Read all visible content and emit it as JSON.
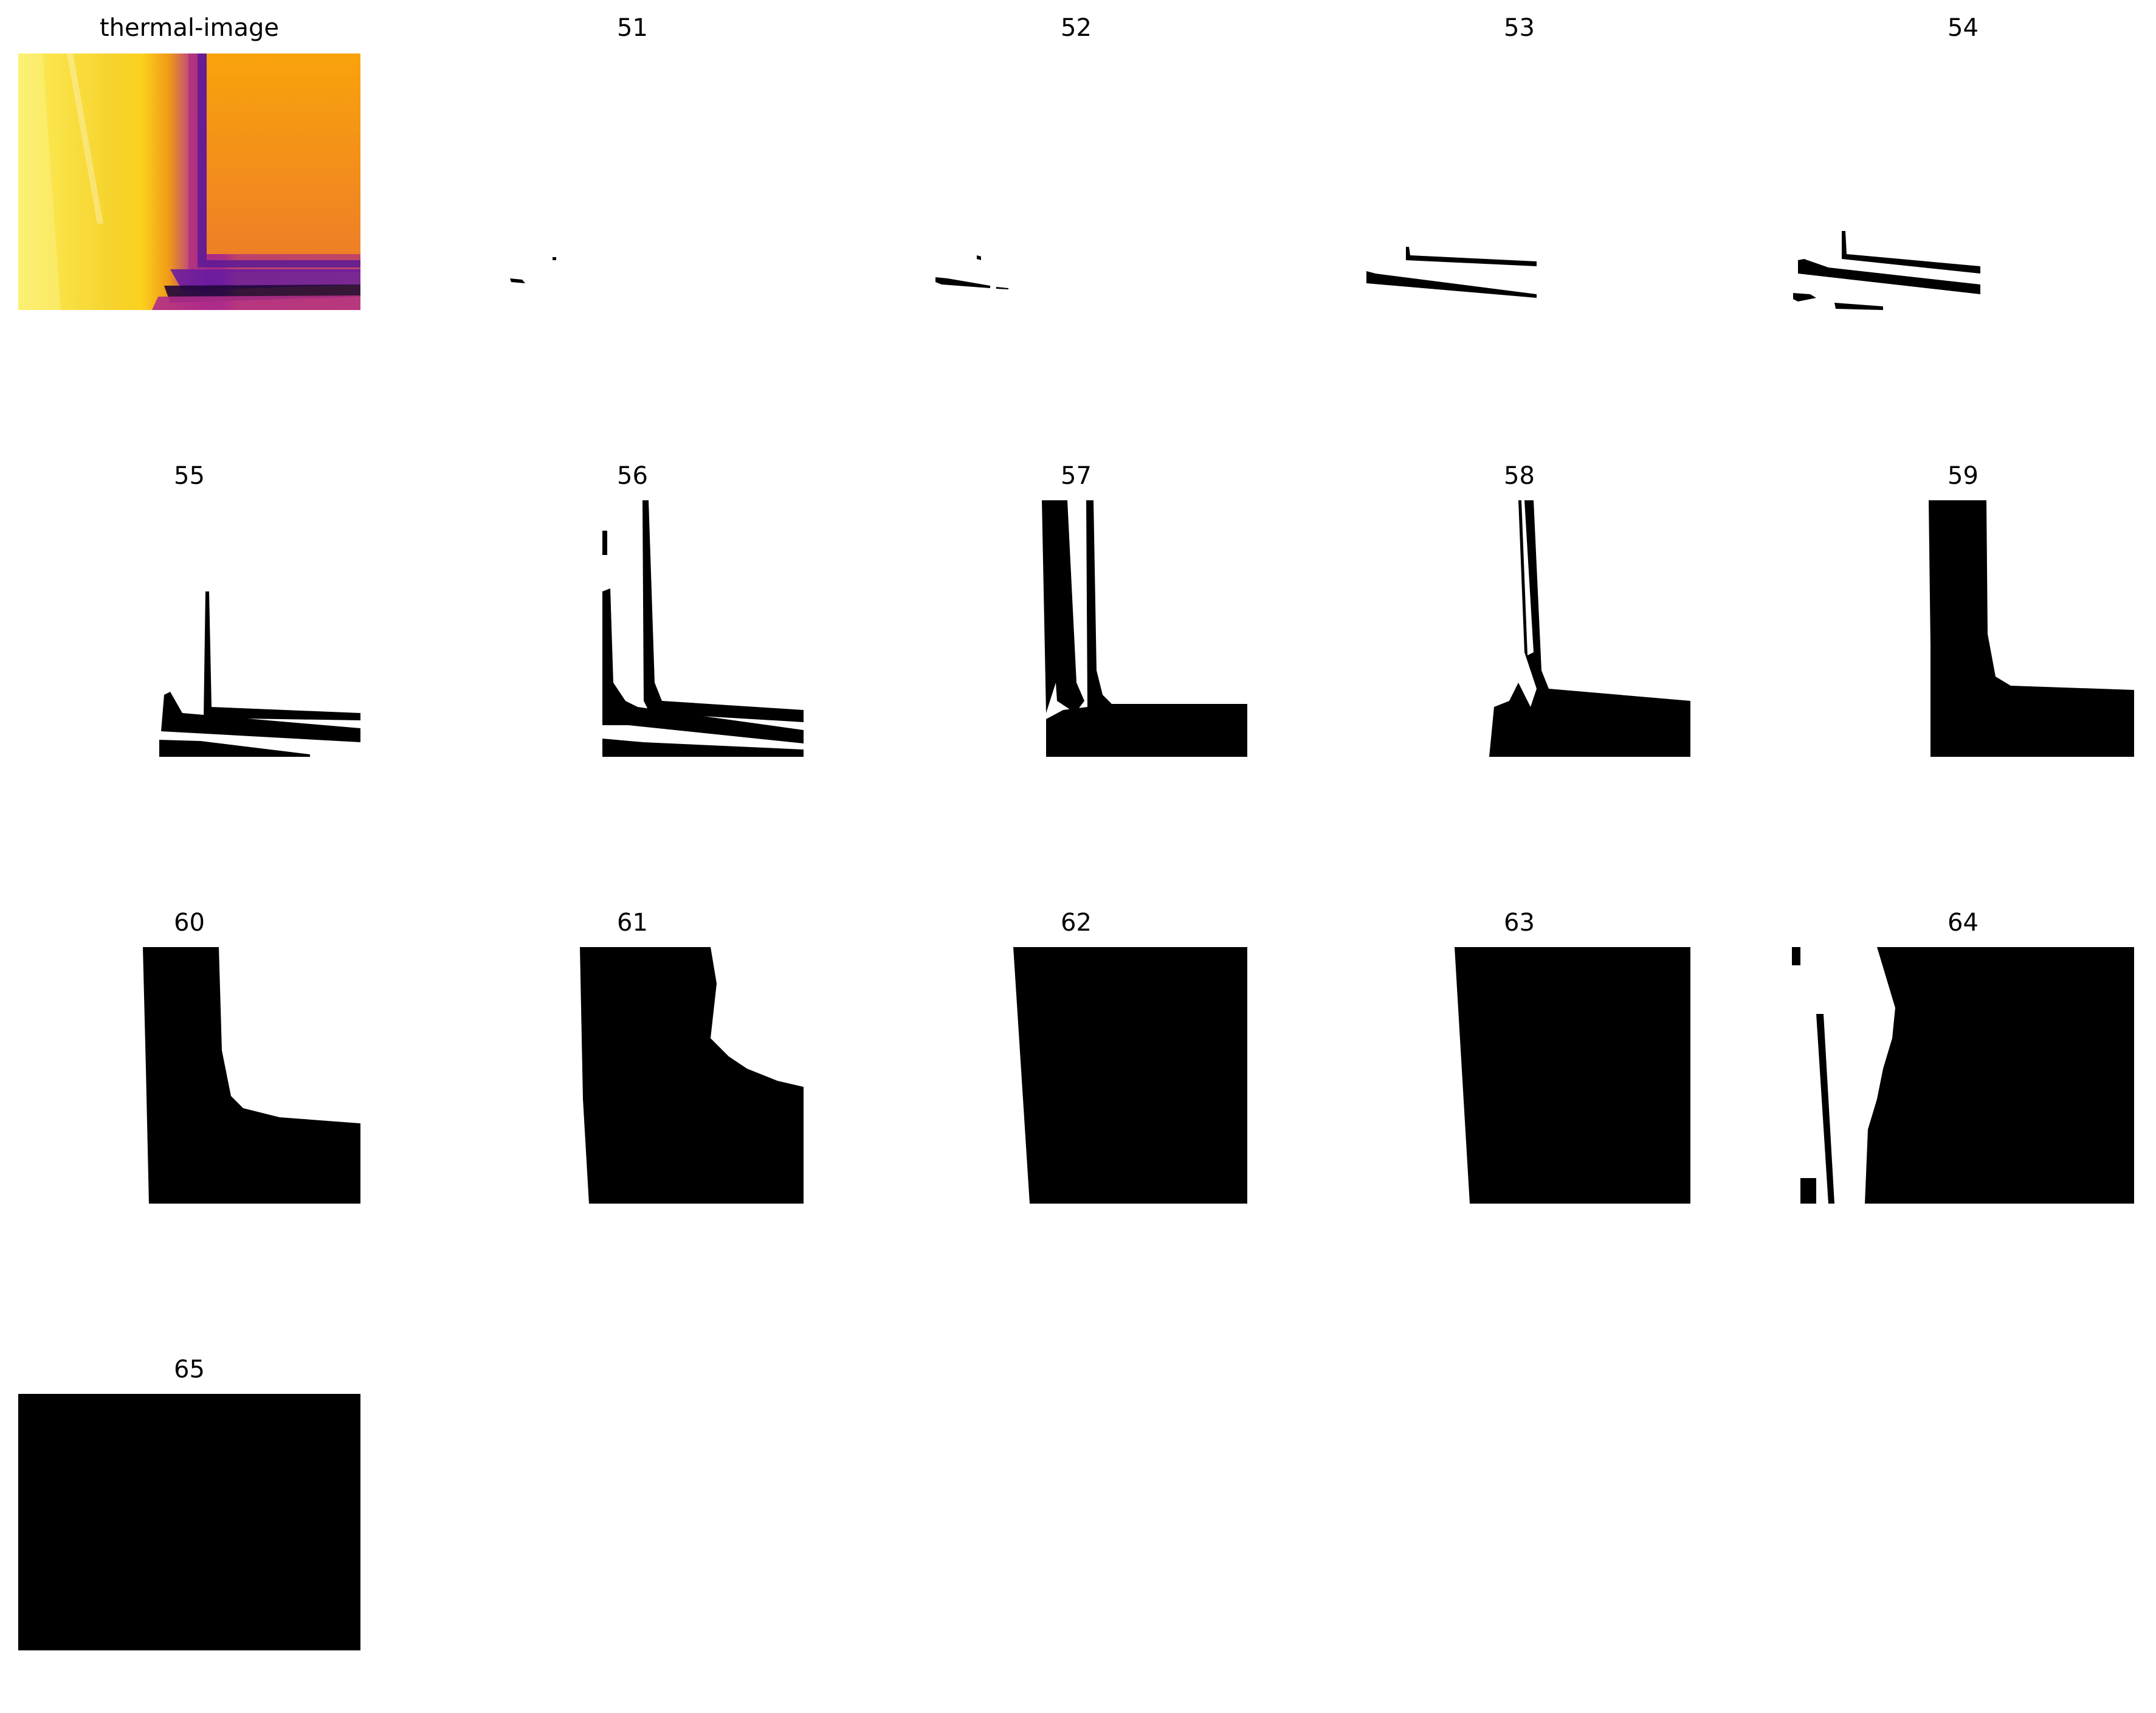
{
  "panels": [
    {
      "title": "thermal-image"
    },
    {
      "title": "51"
    },
    {
      "title": "52"
    },
    {
      "title": "53"
    },
    {
      "title": "54"
    },
    {
      "title": "55"
    },
    {
      "title": "56"
    },
    {
      "title": "57"
    },
    {
      "title": "58"
    },
    {
      "title": "59"
    },
    {
      "title": "60"
    },
    {
      "title": "61"
    },
    {
      "title": "62"
    },
    {
      "title": "63"
    },
    {
      "title": "64"
    },
    {
      "title": "65"
    }
  ]
}
